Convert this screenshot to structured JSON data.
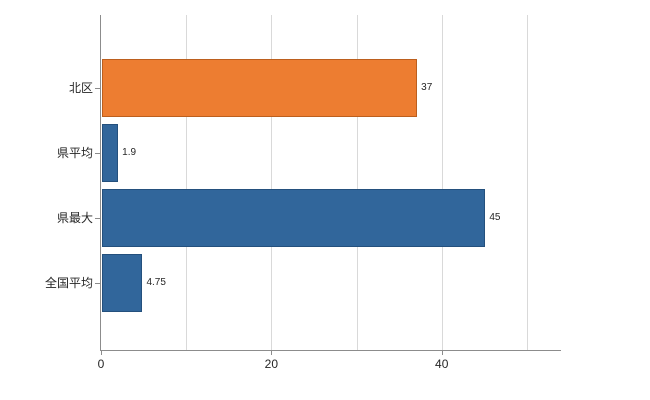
{
  "chart_data": {
    "type": "bar",
    "orientation": "horizontal",
    "title": "",
    "xlabel": "",
    "ylabel": "",
    "categories": [
      "北区",
      "県平均",
      "県最大",
      "全国平均"
    ],
    "values": [
      37,
      1.9,
      45,
      4.75
    ],
    "value_labels": [
      "37",
      "1.9",
      "45",
      "4.75"
    ],
    "bar_colors": [
      "#ED7D31",
      "#31669B",
      "#31669B",
      "#31669B"
    ],
    "bar_border_colors": [
      "#BC5F1E",
      "#24507D",
      "#24507D",
      "#24507D"
    ],
    "xlim": [
      0,
      54
    ],
    "xticks": [
      0,
      20,
      40
    ],
    "xtick_labels": [
      "0",
      "20",
      "40"
    ],
    "gridline_values": [
      10,
      20,
      30,
      40,
      50
    ],
    "legend": "none",
    "grid": "vertical"
  },
  "colors": {
    "axis": "#8c8c8c",
    "gridline": "#d9d9d9",
    "text": "#262626",
    "background": "#ffffff"
  }
}
